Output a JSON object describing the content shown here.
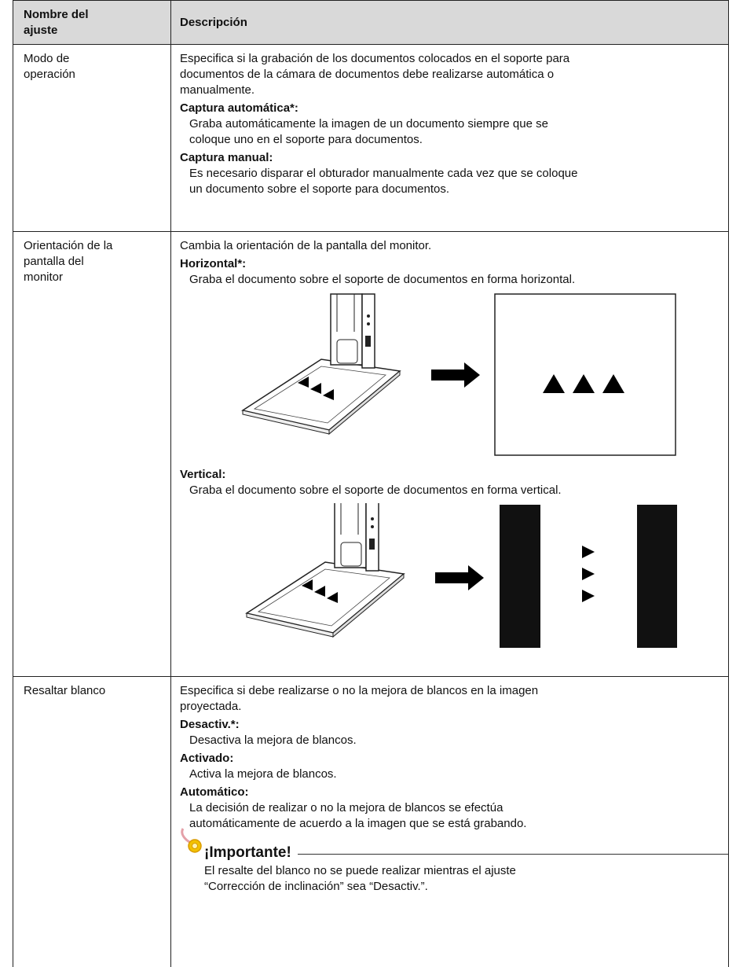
{
  "table": {
    "header": {
      "name": [
        "Nombre del",
        "ajuste"
      ],
      "description": [
        "Descripción"
      ]
    },
    "rows": [
      {
        "name": [
          "Modo de",
          "operación"
        ],
        "intro": [
          "Especifica si la grabación de los documentos colocados en el soporte para",
          "documentos de la cámara de documentos debe realizarse automática o",
          "manualmente."
        ],
        "options": [
          {
            "label": "Captura automática*:",
            "text": [
              "Graba automáticamente la imagen de un documento siempre que se",
              "coloque uno en el soporte para documentos."
            ]
          },
          {
            "label": "Captura manual:",
            "text": [
              "Es necesario disparar el obturador manualmente cada vez que se coloque",
              "un documento sobre el soporte para documentos."
            ]
          }
        ]
      },
      {
        "name": [
          "Orientación de la",
          "pantalla del",
          "monitor"
        ],
        "intro": [
          "Cambia la orientación de la pantalla del monitor."
        ],
        "options": [
          {
            "label": "Horizontal*:",
            "text": [
              "Graba el documento sobre el soporte de documentos en forma horizontal."
            ]
          },
          {
            "label": "Vertical:",
            "text": [
              "Graba el documento sobre el soporte de documentos en forma vertical."
            ]
          }
        ]
      },
      {
        "name": [
          "Resaltar blanco"
        ],
        "intro": [
          "Especifica si debe realizarse o no la mejora de blancos en la imagen",
          "proyectada."
        ],
        "options": [
          {
            "label": "Desactiv.*:",
            "text": [
              "Desactiva la mejora de blancos."
            ]
          },
          {
            "label": "Activado:",
            "text": [
              "Activa la mejora de blancos."
            ]
          },
          {
            "label": "Automático:",
            "text": [
              "La decisión de realizar o no la mejora de blancos se efectúa",
              "automáticamente de acuerdo a la imagen que se está grabando."
            ]
          }
        ],
        "note": {
          "title": "¡Importante!",
          "text": [
            "El resalte del blanco no se puede realizar mientras el ajuste",
            "“Corrección de inclinación” sea “Desactiv.”."
          ]
        }
      }
    ]
  }
}
